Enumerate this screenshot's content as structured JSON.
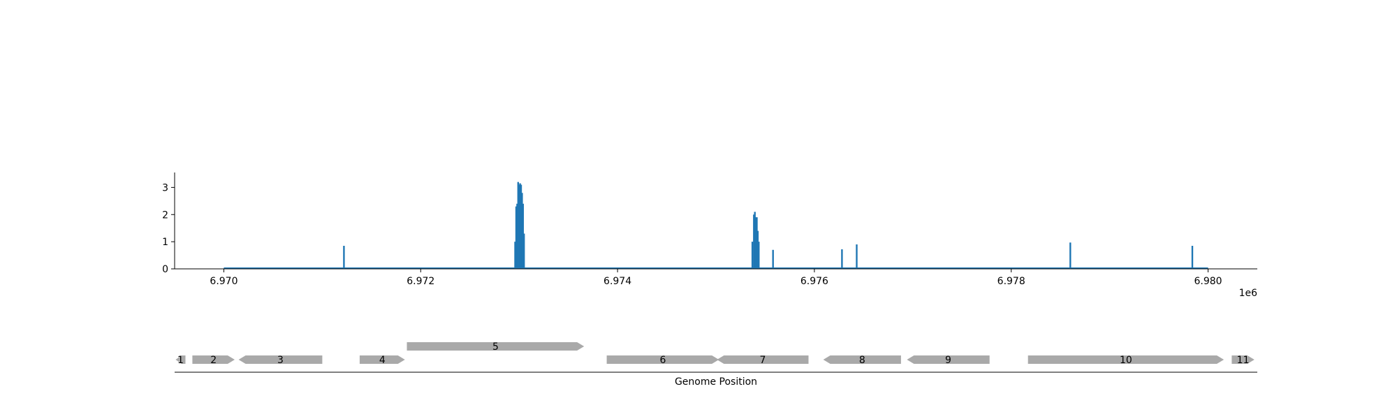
{
  "colors": {
    "coverage": "#1f77b4",
    "gene": "#a9a9a9",
    "axis": "#000000",
    "text": "#000000",
    "background": "#ffffff"
  },
  "chart_data": [
    {
      "type": "bar",
      "description_of_marks": "coverage spikes along genome position",
      "xlim": [
        6969500,
        6980500
      ],
      "ylim": [
        0,
        3.55
      ],
      "x_ticks": [
        6970000,
        6972000,
        6974000,
        6976000,
        6978000,
        6980000
      ],
      "x_tick_labels": [
        "6.970",
        "6.972",
        "6.974",
        "6.976",
        "6.978",
        "6.980"
      ],
      "x_offset_label": "1e6",
      "y_ticks": [
        0,
        1,
        2,
        3
      ],
      "y_tick_labels": [
        "0",
        "1",
        "2",
        "3"
      ],
      "baseline": [
        6970000,
        6980000
      ],
      "spikes": [
        {
          "x": 6971220,
          "y": 0.85
        },
        {
          "x": 6972960,
          "y": 1.0
        },
        {
          "x": 6972970,
          "y": 2.3
        },
        {
          "x": 6972980,
          "y": 2.4
        },
        {
          "x": 6972990,
          "y": 3.2
        },
        {
          "x": 6973000,
          "y": 3.1
        },
        {
          "x": 6973010,
          "y": 3.15
        },
        {
          "x": 6973020,
          "y": 3.1
        },
        {
          "x": 6973030,
          "y": 2.8
        },
        {
          "x": 6973040,
          "y": 2.4
        },
        {
          "x": 6973050,
          "y": 1.3
        },
        {
          "x": 6975370,
          "y": 1.0
        },
        {
          "x": 6975385,
          "y": 2.0
        },
        {
          "x": 6975395,
          "y": 2.1
        },
        {
          "x": 6975405,
          "y": 1.9
        },
        {
          "x": 6975415,
          "y": 1.9
        },
        {
          "x": 6975425,
          "y": 1.4
        },
        {
          "x": 6975435,
          "y": 1.0
        },
        {
          "x": 6975580,
          "y": 0.7
        },
        {
          "x": 6976280,
          "y": 0.72
        },
        {
          "x": 6976430,
          "y": 0.9
        },
        {
          "x": 6978600,
          "y": 0.97
        },
        {
          "x": 6979840,
          "y": 0.85
        }
      ]
    },
    {
      "type": "gene-track",
      "xlabel": "Genome Position",
      "genes": [
        {
          "label": "1",
          "start": 6969510,
          "end": 6969610,
          "strand": "-",
          "row": 0
        },
        {
          "label": "2",
          "start": 6969680,
          "end": 6970110,
          "strand": "+",
          "row": 0
        },
        {
          "label": "3",
          "start": 6970150,
          "end": 6971000,
          "strand": "-",
          "row": 0
        },
        {
          "label": "4",
          "start": 6971380,
          "end": 6971840,
          "strand": "+",
          "row": 0
        },
        {
          "label": "5",
          "start": 6971860,
          "end": 6973660,
          "strand": "+",
          "row": 1
        },
        {
          "label": "6",
          "start": 6973890,
          "end": 6975030,
          "strand": "+",
          "row": 0
        },
        {
          "label": "7",
          "start": 6975010,
          "end": 6975940,
          "strand": "-",
          "row": 0
        },
        {
          "label": "8",
          "start": 6976090,
          "end": 6976880,
          "strand": "-",
          "row": 0
        },
        {
          "label": "9",
          "start": 6976940,
          "end": 6977780,
          "strand": "-",
          "row": 0
        },
        {
          "label": "10",
          "start": 6978170,
          "end": 6980160,
          "strand": "+",
          "row": 0
        },
        {
          "label": "11",
          "start": 6980240,
          "end": 6980470,
          "strand": "+",
          "row": 0
        }
      ]
    }
  ]
}
